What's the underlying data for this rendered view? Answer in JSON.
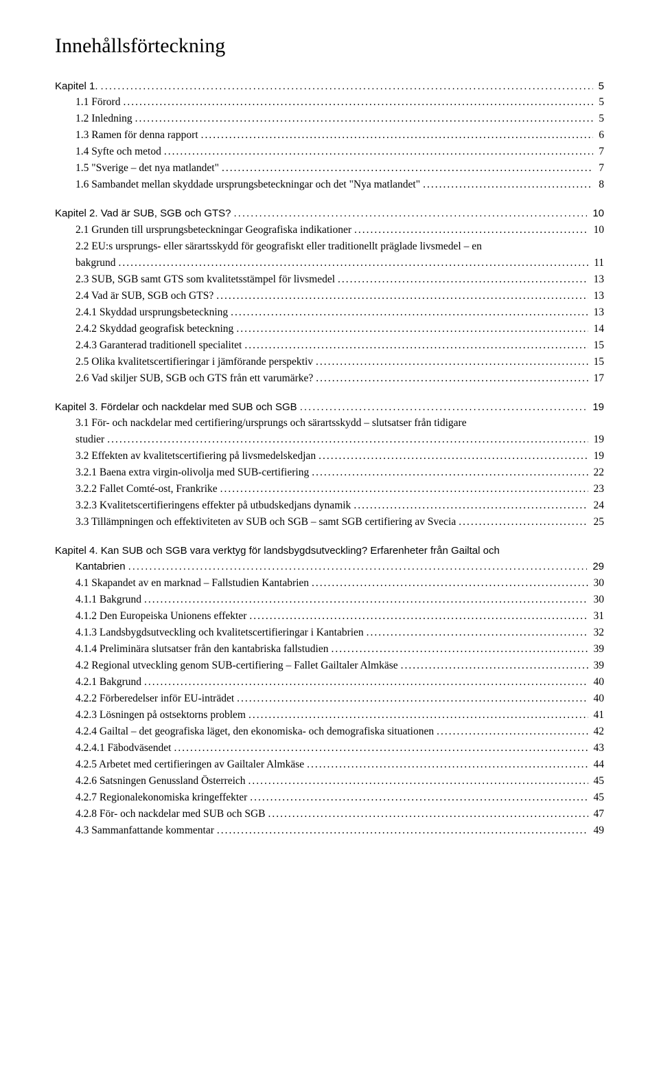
{
  "title": "Innehållsförteckning",
  "fonts": {
    "heading": "Georgia",
    "chapter": "Verdana",
    "entry": "Georgia"
  },
  "colors": {
    "text": "#000000",
    "background": "#ffffff"
  },
  "toc": [
    {
      "chapter": {
        "label": "Kapitel 1.",
        "page": "5"
      },
      "entries": [
        {
          "label": "1.1 Förord",
          "page": "5",
          "indent": 1
        },
        {
          "label": "1.2 Inledning",
          "page": "5",
          "indent": 1
        },
        {
          "label": "1.3 Ramen för denna rapport",
          "page": "6",
          "indent": 1
        },
        {
          "label": "1.4 Syfte och metod",
          "page": "7",
          "indent": 1
        },
        {
          "label": "1.5 \"Sverige – det nya matlandet\"",
          "page": "7",
          "indent": 1
        },
        {
          "label": "1.6 Sambandet mellan skyddade ursprungsbeteckningar och det \"Nya matlandet\"",
          "page": "8",
          "indent": 1
        }
      ]
    },
    {
      "chapter": {
        "label": "Kapitel 2. Vad är SUB, SGB och GTS?",
        "page": "10"
      },
      "entries": [
        {
          "label": "2.1 Grunden till ursprungsbeteckningar Geografiska indikationer",
          "page": "10",
          "indent": 1
        },
        {
          "label": "2.2 EU:s ursprungs- eller särartsskydd för geografiskt eller traditionellt präglade livsmedel – en bakgrund",
          "page": "11",
          "indent": 1,
          "wrap": true
        },
        {
          "label": "2.3 SUB, SGB samt GTS som kvalitetsstämpel för livsmedel",
          "page": "13",
          "indent": 1
        },
        {
          "label": "2.4 Vad är SUB, SGB och GTS?",
          "page": "13",
          "indent": 1
        },
        {
          "label": "2.4.1 Skyddad ursprungsbeteckning",
          "page": "13",
          "indent": 1
        },
        {
          "label": "2.4.2 Skyddad geografisk beteckning",
          "page": "14",
          "indent": 1
        },
        {
          "label": "2.4.3 Garanterad traditionell specialitet",
          "page": "15",
          "indent": 1
        },
        {
          "label": "2.5 Olika kvalitetscertifieringar i jämförande perspektiv",
          "page": "15",
          "indent": 1
        },
        {
          "label": "2.6 Vad skiljer SUB, SGB och GTS från ett varumärke?",
          "page": "17",
          "indent": 1
        }
      ]
    },
    {
      "chapter": {
        "label": "Kapitel 3. Fördelar och nackdelar med SUB och SGB",
        "page": "19"
      },
      "entries": [
        {
          "label": "3.1 För- och nackdelar med certifiering/ursprungs och särartsskydd – slutsatser från tidigare studier",
          "page": "19",
          "indent": 1,
          "wrap": true
        },
        {
          "label": "3.2 Effekten av kvalitetscertifiering på livsmedelskedjan",
          "page": "19",
          "indent": 1
        },
        {
          "label": "3.2.1 Baena extra virgin-olivolja med SUB-certifiering",
          "page": "22",
          "indent": 1
        },
        {
          "label": "3.2.2 Fallet Comté-ost, Frankrike",
          "page": "23",
          "indent": 1
        },
        {
          "label": "3.2.3 Kvalitetscertifieringens effekter på utbudskedjans dynamik",
          "page": "24",
          "indent": 1
        },
        {
          "label": "3.3 Tillämpningen och effektiviteten av SUB och SGB – samt SGB certifiering av Svecia",
          "page": "25",
          "indent": 1
        }
      ]
    },
    {
      "chapter": {
        "label": "Kapitel 4. Kan SUB och SGB vara verktyg för landsbygdsutveckling? Erfarenheter från Gailtal och Kantabrien",
        "page": "29",
        "wrap": true
      },
      "entries": [
        {
          "label": "4.1 Skapandet av en marknad – Fallstudien Kantabrien",
          "page": "30",
          "indent": 1
        },
        {
          "label": "4.1.1 Bakgrund",
          "page": "30",
          "indent": 1
        },
        {
          "label": "4.1.2 Den Europeiska Unionens effekter",
          "page": "31",
          "indent": 1
        },
        {
          "label": "4.1.3 Landsbygdsutveckling och kvalitetscertifieringar i Kantabrien",
          "page": "32",
          "indent": 1
        },
        {
          "label": "4.1.4 Preliminära slutsatser från den kantabriska fallstudien",
          "page": "39",
          "indent": 1
        },
        {
          "label": "4.2 Regional utveckling genom SUB-certifiering – Fallet Gailtaler Almkäse",
          "page": "39",
          "indent": 1
        },
        {
          "label": "4.2.1 Bakgrund",
          "page": "40",
          "indent": 1
        },
        {
          "label": "4.2.2 Förberedelser inför EU-inträdet",
          "page": "40",
          "indent": 1
        },
        {
          "label": "4.2.3 Lösningen på ostsektorns problem",
          "page": "41",
          "indent": 1
        },
        {
          "label": "4.2.4 Gailtal – det geografiska läget, den ekonomiska- och demografiska situationen",
          "page": "42",
          "indent": 1
        },
        {
          "label": "4.2.4.1 Fäbodväsendet",
          "page": "43",
          "indent": 1
        },
        {
          "label": "4.2.5 Arbetet med certifieringen av Gailtaler Almkäse",
          "page": "44",
          "indent": 1
        },
        {
          "label": "4.2.6 Satsningen Genussland Österreich",
          "page": "45",
          "indent": 1
        },
        {
          "label": "4.2.7 Regionalekonomiska kringeffekter",
          "page": "45",
          "indent": 1
        },
        {
          "label": "4.2.8 För- och nackdelar med SUB och SGB",
          "page": "47",
          "indent": 1
        },
        {
          "label": "4.3 Sammanfattande kommentar",
          "page": "49",
          "indent": 1
        }
      ]
    }
  ]
}
